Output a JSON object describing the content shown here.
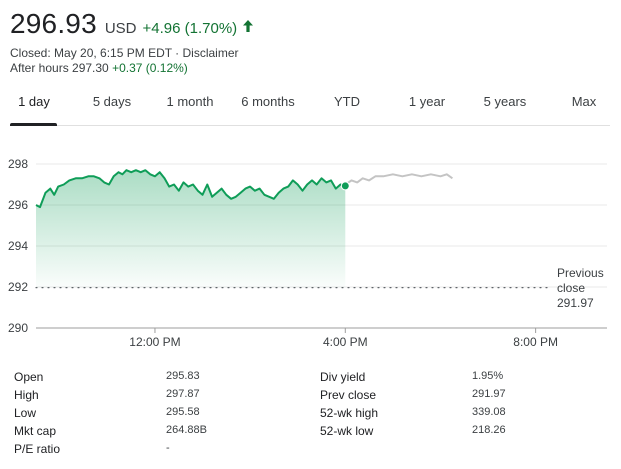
{
  "quote": {
    "price": "296.93",
    "currency": "USD",
    "change": "+4.96 (1.70%)",
    "closed_text": "Closed: May 20, 6:15 PM EDT · Disclaimer",
    "after_hours_label": "After hours 297.30",
    "after_hours_change": "+0.37 (0.12%)",
    "up_color": "#137333",
    "arrow_icon": "arrow-up-icon"
  },
  "tabs": [
    {
      "label": "1 day",
      "active": true
    },
    {
      "label": "5 days",
      "active": false
    },
    {
      "label": "1 month",
      "active": false
    },
    {
      "label": "6 months",
      "active": false
    },
    {
      "label": "YTD",
      "active": false
    },
    {
      "label": "1 year",
      "active": false
    },
    {
      "label": "5 years",
      "active": false
    },
    {
      "label": "Max",
      "active": false
    }
  ],
  "chart": {
    "prev_close_line1": "Previous",
    "prev_close_line2": "close",
    "prev_close_value": "291.97"
  },
  "chart_data": {
    "type": "line",
    "yticks": [
      "298",
      "296",
      "294",
      "292",
      "290"
    ],
    "xticks": [
      "12:00 PM",
      "4:00 PM",
      "8:00 PM"
    ],
    "ylim": [
      290,
      298.8
    ],
    "xlim": [
      "9:30 AM",
      "9:30 PM"
    ],
    "previous_close": 291.97,
    "line_color": "#0f9d58",
    "after_hours_color": "#c4c4c4",
    "series": [
      {
        "values": [
          [
            "9:30 AM",
            296.0
          ],
          [
            "9:35 AM",
            295.9
          ],
          [
            "9:42 AM",
            296.6
          ],
          [
            "9:48 AM",
            296.8
          ],
          [
            "9:53 AM",
            296.5
          ],
          [
            "9:58 AM",
            296.9
          ],
          [
            "10:05 AM",
            297.0
          ],
          [
            "10:12 AM",
            297.2
          ],
          [
            "10:20 AM",
            297.3
          ],
          [
            "10:28 AM",
            297.3
          ],
          [
            "10:36 AM",
            297.4
          ],
          [
            "10:43 AM",
            297.4
          ],
          [
            "10:50 AM",
            297.3
          ],
          [
            "10:56 AM",
            297.1
          ],
          [
            "11:02 AM",
            297.0
          ],
          [
            "11:08 AM",
            297.4
          ],
          [
            "11:14 AM",
            297.6
          ],
          [
            "11:19 AM",
            297.5
          ],
          [
            "11:24 AM",
            297.7
          ],
          [
            "11:30 AM",
            297.6
          ],
          [
            "11:36 AM",
            297.7
          ],
          [
            "11:42 AM",
            297.6
          ],
          [
            "11:48 AM",
            297.7
          ],
          [
            "11:54 AM",
            297.5
          ],
          [
            "12:00 PM",
            297.4
          ],
          [
            "12:06 PM",
            297.6
          ],
          [
            "12:12 PM",
            297.3
          ],
          [
            "12:18 PM",
            296.9
          ],
          [
            "12:24 PM",
            297.0
          ],
          [
            "12:30 PM",
            296.7
          ],
          [
            "12:36 PM",
            297.1
          ],
          [
            "12:42 PM",
            296.9
          ],
          [
            "12:48 PM",
            297.0
          ],
          [
            "12:54 PM",
            296.7
          ],
          [
            "1:00 PM",
            296.5
          ],
          [
            "1:06 PM",
            297.0
          ],
          [
            "1:12 PM",
            296.4
          ],
          [
            "1:18 PM",
            296.6
          ],
          [
            "1:24 PM",
            296.8
          ],
          [
            "1:30 PM",
            296.5
          ],
          [
            "1:36 PM",
            296.3
          ],
          [
            "1:42 PM",
            296.4
          ],
          [
            "1:48 PM",
            296.6
          ],
          [
            "1:54 PM",
            296.8
          ],
          [
            "2:00 PM",
            296.9
          ],
          [
            "2:06 PM",
            296.7
          ],
          [
            "2:12 PM",
            296.8
          ],
          [
            "2:18 PM",
            296.5
          ],
          [
            "2:24 PM",
            296.4
          ],
          [
            "2:30 PM",
            296.3
          ],
          [
            "2:36 PM",
            296.6
          ],
          [
            "2:42 PM",
            296.8
          ],
          [
            "2:48 PM",
            296.9
          ],
          [
            "2:54 PM",
            297.2
          ],
          [
            "3:00 PM",
            297.0
          ],
          [
            "3:06 PM",
            296.7
          ],
          [
            "3:12 PM",
            297.0
          ],
          [
            "3:18 PM",
            297.2
          ],
          [
            "3:24 PM",
            297.0
          ],
          [
            "3:30 PM",
            297.3
          ],
          [
            "3:36 PM",
            297.1
          ],
          [
            "3:42 PM",
            297.2
          ],
          [
            "3:48 PM",
            296.8
          ],
          [
            "3:54 PM",
            297.0
          ],
          [
            "4:00 PM",
            296.93
          ]
        ]
      },
      {
        "values": [
          [
            "4:00 PM",
            297.0
          ],
          [
            "4:08 PM",
            297.2
          ],
          [
            "4:15 PM",
            297.1
          ],
          [
            "4:22 PM",
            297.3
          ],
          [
            "4:30 PM",
            297.2
          ],
          [
            "4:38 PM",
            297.4
          ],
          [
            "4:48 PM",
            297.4
          ],
          [
            "5:00 PM",
            297.5
          ],
          [
            "5:12 PM",
            297.4
          ],
          [
            "5:24 PM",
            297.5
          ],
          [
            "5:36 PM",
            297.4
          ],
          [
            "5:48 PM",
            297.5
          ],
          [
            "6:00 PM",
            297.4
          ],
          [
            "6:08 PM",
            297.5
          ],
          [
            "6:15 PM",
            297.3
          ]
        ]
      }
    ]
  },
  "stats": {
    "left": [
      {
        "label": "Open",
        "value": "295.83"
      },
      {
        "label": "High",
        "value": "297.87"
      },
      {
        "label": "Low",
        "value": "295.58"
      },
      {
        "label": "Mkt cap",
        "value": "264.88B"
      },
      {
        "label": "P/E ratio",
        "value": "-"
      }
    ],
    "right": [
      {
        "label": "Div yield",
        "value": "1.95%"
      },
      {
        "label": "Prev close",
        "value": "291.97"
      },
      {
        "label": "52-wk high",
        "value": "339.08"
      },
      {
        "label": "52-wk low",
        "value": "218.26"
      }
    ]
  }
}
